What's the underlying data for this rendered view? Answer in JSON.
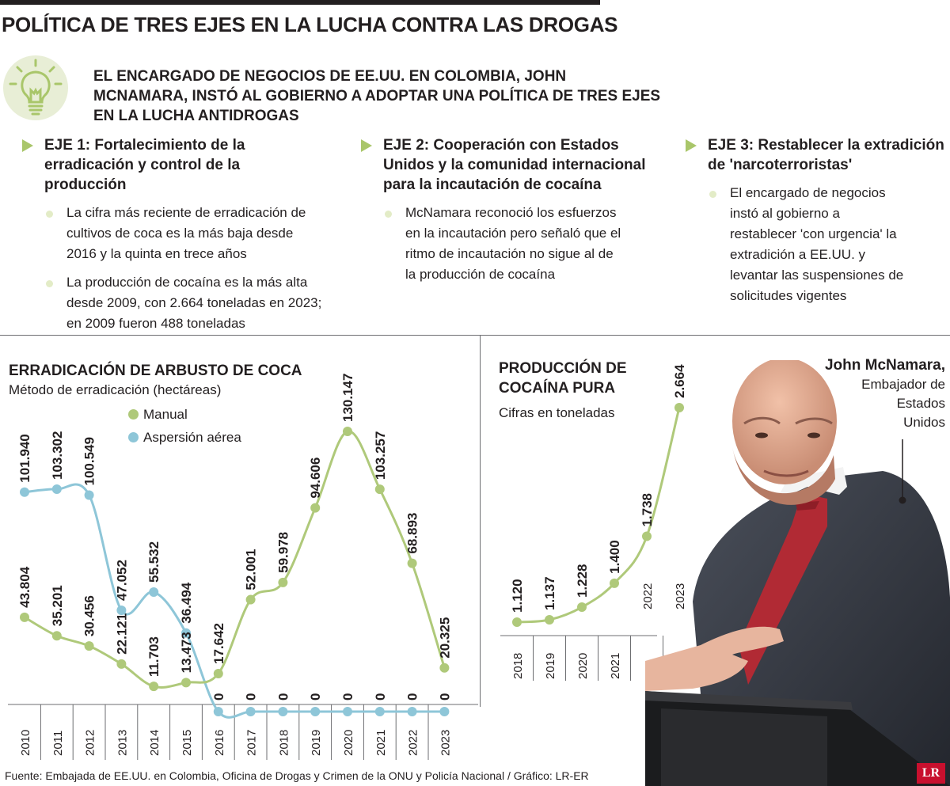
{
  "header": {
    "title": "POLÍTICA DE TRES EJES EN LA LUCHA CONTRA LAS DROGAS",
    "subtitle": "EL ENCARGADO DE NEGOCIOS DE EE.UU. EN COLOMBIA, JOHN MCNAMARA, INSTÓ AL GOBIERNO A ADOPTAR UNA POLÍTICA DE TRES EJES EN LA LUCHA ANTIDROGAS",
    "icon": "lightbulb-icon"
  },
  "ejes": [
    {
      "title": "EJE 1: Fortalecimiento de la erradicación y control de la producción",
      "bullets": [
        "La cifra más reciente de erradicación de cultivos de coca es la más baja desde 2016 y la quinta en trece años",
        "La producción de cocaína es la más alta desde 2009, con 2.664 toneladas en 2023; en 2009 fueron 488 toneladas"
      ]
    },
    {
      "title": "EJE 2: Cooperación con Estados Unidos y la comunidad internacional para la incautación de cocaína",
      "bullets": [
        "McNamara reconoció los esfuerzos en la incautación pero señaló que el ritmo de incautación no sigue al de la producción de cocaína"
      ]
    },
    {
      "title": "EJE 3: Restablecer la extradición de 'narcoterroristas'",
      "bullets": [
        "El encargado de negocios instó al gobierno a restablecer 'con urgencia' la extradición a EE.UU. y levantar las suspensiones de solicitudes vigentes"
      ]
    }
  ],
  "colors": {
    "manual": "#afc97a",
    "aerea": "#8ec6d8",
    "accent": "#a9c66a",
    "dark": "#231f20"
  },
  "chart_data": [
    {
      "type": "line",
      "title": "ERRADICACIÓN DE ARBUSTO DE COCA",
      "subtitle": "Método de erradicación (hectáreas)",
      "x": [
        "2010",
        "2011",
        "2012",
        "2013",
        "2014",
        "2015",
        "2016",
        "2017",
        "2018",
        "2019",
        "2020",
        "2021",
        "2022",
        "2023"
      ],
      "series": [
        {
          "name": "Manual",
          "values": [
            43804,
            35201,
            30456,
            22121,
            11703,
            13473,
            17642,
            52001,
            59978,
            94606,
            130147,
            103257,
            68893,
            20325
          ],
          "labels": [
            "43.804",
            "35.201",
            "30.456",
            "22.121",
            "11.703",
            "13.473",
            "17.642",
            "52.001",
            "59.978",
            "94.606",
            "130.147",
            "103.257",
            "68.893",
            "20.325"
          ]
        },
        {
          "name": "Aspersión aérea",
          "values": [
            101940,
            103302,
            100549,
            47052,
            55532,
            36494,
            0,
            0,
            0,
            0,
            0,
            0,
            0,
            0
          ],
          "labels": [
            "101.940",
            "103.302",
            "100.549",
            "47.052",
            "55.532",
            "36.494",
            "0",
            "0",
            "0",
            "0",
            "0",
            "0",
            "0",
            "0"
          ]
        }
      ],
      "ylim": [
        0,
        130147
      ]
    },
    {
      "type": "line",
      "title": "PRODUCCIÓN DE COCAÍNA PURA",
      "subtitle": "Cifras en toneladas",
      "x": [
        "2018",
        "2019",
        "2020",
        "2021",
        "2022",
        "2023"
      ],
      "series": [
        {
          "values": [
            1120,
            1137,
            1228,
            1400,
            1738,
            2664
          ],
          "labels": [
            "1.120",
            "1.137",
            "1.228",
            "1.400",
            "1.738",
            "2.664"
          ]
        }
      ],
      "ylim": [
        0,
        2664
      ]
    }
  ],
  "photo_caption": {
    "name": "John McNamara,",
    "role": "Embajador de Estados Unidos"
  },
  "source": "Fuente: Embajada de EE.UU. en Colombia, Oficina de Drogas y Crimen de la ONU y Policía Nacional / Gráfico: LR-ER",
  "logo": "LR"
}
